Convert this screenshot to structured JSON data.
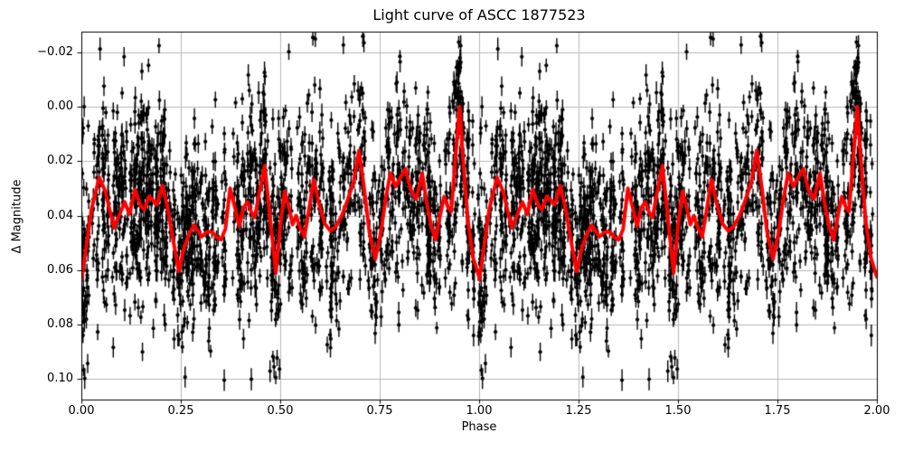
{
  "figure": {
    "title": "Light curve of ASCC 1877523",
    "xlabel": "Phase",
    "ylabel": "Δ Magnitude"
  },
  "chart_data": {
    "type": "scatter",
    "title": "Light curve of ASCC 1877523",
    "xlabel": "Phase",
    "ylabel": "Δ Magnitude",
    "grid": true,
    "legend": "none",
    "x_range": [
      0.0,
      2.0
    ],
    "y_axis_inverted": true,
    "ylim_top": -0.0275,
    "ylim_bottom": 0.1075,
    "xticks": [
      0.0,
      0.25,
      0.5,
      0.75,
      1.0,
      1.25,
      1.5,
      1.75,
      2.0
    ],
    "xtick_labels": [
      "0.00",
      "0.25",
      "0.50",
      "0.75",
      "1.00",
      "1.25",
      "1.50",
      "1.75",
      "2.00"
    ],
    "yticks": [
      -0.02,
      0.0,
      0.02,
      0.04,
      0.06,
      0.08,
      0.1
    ],
    "ytick_labels": [
      "−0.02",
      "0.00",
      "0.02",
      "0.04",
      "0.06",
      "0.08",
      "0.10"
    ],
    "colors": {
      "background": "#ffffff",
      "grid": "#b0b0b0",
      "spines": "#000000",
      "scatter_points": "#000000",
      "smoothed_curve": "#ff0000",
      "text": "#000000"
    },
    "series": [
      {
        "name": "photometric-measurements-errorbar-scatter",
        "type": "errorbar_scatter",
        "marker": "filled black dot with vertical error bar, no caps",
        "cycles": 2,
        "n_points_approx": 3800,
        "model": {
          "seed": 20240707,
          "clusters_per_cycle": 300,
          "points_per_cluster_min": 3,
          "points_per_cluster_max": 10,
          "phase_jitter": 0.0035,
          "mag_sigma": 0.019,
          "errorbar_half_min": 0.0021,
          "errorbar_half_max": 0.0042,
          "mag_clip_min": -0.0272,
          "mag_clip_max": 0.1072
        }
      },
      {
        "name": "smoothed-mean-light-curve",
        "type": "line",
        "linewidth": 4,
        "cycles": 2,
        "cycle_phase": [
          0.0,
          0.012,
          0.025,
          0.045,
          0.06,
          0.082,
          0.095,
          0.109,
          0.121,
          0.135,
          0.148,
          0.158,
          0.17,
          0.178,
          0.19,
          0.204,
          0.218,
          0.232,
          0.245,
          0.258,
          0.27,
          0.283,
          0.295,
          0.302,
          0.315,
          0.329,
          0.34,
          0.351,
          0.362,
          0.374,
          0.386,
          0.397,
          0.408,
          0.418,
          0.428,
          0.436,
          0.448,
          0.461,
          0.474,
          0.489,
          0.5,
          0.511,
          0.522,
          0.531,
          0.54,
          0.549,
          0.561,
          0.572,
          0.584,
          0.598,
          0.612,
          0.626,
          0.64,
          0.655,
          0.67,
          0.684,
          0.698,
          0.711,
          0.724,
          0.739,
          0.753,
          0.765,
          0.777,
          0.79,
          0.802,
          0.815,
          0.828,
          0.842,
          0.85,
          0.857,
          0.868,
          0.88,
          0.891,
          0.902,
          0.912,
          0.922,
          0.93,
          0.94,
          0.951,
          0.961,
          0.972,
          0.985,
          1.0
        ],
        "cycle_mag": [
          0.0635,
          0.052,
          0.038,
          0.026,
          0.031,
          0.0445,
          0.04,
          0.035,
          0.0395,
          0.0305,
          0.036,
          0.0378,
          0.033,
          0.034,
          0.036,
          0.029,
          0.038,
          0.05,
          0.0605,
          0.052,
          0.047,
          0.0435,
          0.046,
          0.0478,
          0.046,
          0.046,
          0.048,
          0.0489,
          0.045,
          0.03,
          0.037,
          0.0439,
          0.037,
          0.035,
          0.039,
          0.0406,
          0.031,
          0.0217,
          0.04,
          0.0611,
          0.044,
          0.0311,
          0.037,
          0.0433,
          0.04,
          0.044,
          0.0478,
          0.038,
          0.0267,
          0.036,
          0.043,
          0.0456,
          0.044,
          0.04,
          0.034,
          0.028,
          0.0161,
          0.03,
          0.046,
          0.056,
          0.046,
          0.034,
          0.0244,
          0.0294,
          0.026,
          0.0228,
          0.0305,
          0.0339,
          0.029,
          0.0244,
          0.035,
          0.044,
          0.0489,
          0.04,
          0.033,
          0.037,
          0.0385,
          0.02,
          0.0,
          0.022,
          0.042,
          0.0555,
          0.0625
        ]
      }
    ]
  }
}
